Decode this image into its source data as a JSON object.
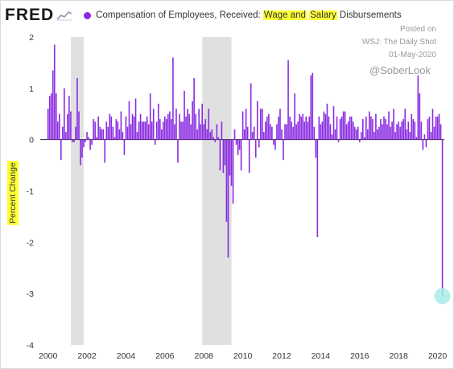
{
  "brand": {
    "logo_text": "FRED",
    "logo_icon": "line-chart-icon"
  },
  "header": {
    "title_prefix": "Compensation of Employees, Received: ",
    "title_highlight_1": "Wage and",
    "title_mid": " ",
    "title_highlight_2": "Salary",
    "title_suffix": " Disbursements"
  },
  "annotation": {
    "line1": "Posted on",
    "line2": "WSJ: The Daily Shot",
    "line3": "01-May-2020",
    "handle": "@SoberLook"
  },
  "colors": {
    "series": "#8a2be2",
    "recession": "#e0e0e0",
    "highlight": "#ffff33",
    "circle": "#a8ece8"
  },
  "chart_data": {
    "type": "bar",
    "title": "Compensation of Employees, Received: Wage and Salary Disbursements",
    "ylabel": "Percent Change",
    "xlabel": "",
    "ylim": [
      -4,
      2
    ],
    "xlim": [
      1999.6,
      2020.35
    ],
    "yticks": [
      "2",
      "1",
      "0",
      "-1",
      "-2",
      "-3",
      "-4"
    ],
    "xticks": [
      "2000",
      "2002",
      "2004",
      "2006",
      "2008",
      "2010",
      "2012",
      "2014",
      "2016",
      "2018",
      "2020"
    ],
    "grid": false,
    "recessions": [
      [
        2001.17,
        2001.83
      ],
      [
        2007.92,
        2009.42
      ]
    ],
    "series": [
      {
        "name": "Compensation of Employees, Received: Wage and Salary Disbursements",
        "x_start": "2000-01",
        "frequency": "monthly",
        "values": [
          0.6,
          0.85,
          0.9,
          1.35,
          1.85,
          0.9,
          0.35,
          0.5,
          -0.4,
          0.25,
          1.0,
          0.15,
          0.5,
          0.85,
          0.55,
          -0.05,
          -0.05,
          0.25,
          1.2,
          0.55,
          -0.5,
          -0.35,
          -0.15,
          -0.05,
          0.15,
          0.05,
          -0.2,
          -0.1,
          0.4,
          0.35,
          0.05,
          0.45,
          0.25,
          0.2,
          0.2,
          -0.45,
          0.35,
          0.25,
          0.5,
          0.45,
          0.25,
          0.05,
          0.4,
          0.35,
          0.2,
          0.55,
          0.15,
          -0.3,
          0.45,
          0.25,
          0.75,
          0.3,
          0.5,
          0.45,
          0.8,
          0.15,
          0.35,
          0.5,
          0.35,
          0.35,
          0.35,
          0.45,
          0.3,
          0.9,
          0.35,
          0.6,
          -0.1,
          0.35,
          0.7,
          0.4,
          0.2,
          0.35,
          0.45,
          0.4,
          0.5,
          0.55,
          0.4,
          1.6,
          0.3,
          0.6,
          -0.45,
          0.5,
          0.35,
          0.35,
          0.95,
          0.45,
          0.6,
          0.5,
          0.3,
          0.75,
          1.2,
          0.5,
          0.2,
          0.6,
          0.3,
          0.7,
          0.3,
          0.4,
          0.2,
          0.6,
          0.15,
          0.2,
          0.05,
          -0.05,
          0.3,
          0.05,
          -0.6,
          0.35,
          -0.65,
          -0.5,
          -1.6,
          -2.3,
          -0.7,
          -0.9,
          -1.25,
          0.2,
          -0.1,
          -0.3,
          -0.2,
          -0.6,
          0.55,
          0.2,
          0.6,
          0.25,
          -0.65,
          1.1,
          0.15,
          0.25,
          -0.35,
          0.75,
          -0.15,
          0.6,
          0.6,
          0.15,
          0.35,
          0.45,
          0.5,
          0.3,
          0.25,
          -0.1,
          -0.2,
          0.3,
          0.45,
          0.6,
          0.2,
          -0.4,
          0.3,
          0.3,
          1.55,
          0.45,
          0.35,
          0.25,
          0.9,
          0.3,
          0.35,
          0.5,
          0.45,
          0.5,
          0.35,
          0.45,
          0.35,
          0.45,
          1.25,
          1.3,
          0.25,
          -0.35,
          -1.9,
          0.45,
          0.3,
          0.35,
          0.55,
          0.5,
          0.7,
          0.45,
          0.3,
          0.1,
          0.65,
          0.2,
          0.45,
          -0.05,
          0.4,
          0.45,
          0.55,
          0.55,
          0.3,
          0.35,
          0.45,
          0.45,
          0.35,
          0.25,
          0.2,
          0.25,
          -0.05,
          0.15,
          0.4,
          0.05,
          0.45,
          0.2,
          0.55,
          0.45,
          0.4,
          0.15,
          0.5,
          0.2,
          0.25,
          0.4,
          0.3,
          0.45,
          0.4,
          0.3,
          0.55,
          0.25,
          0.35,
          0.6,
          0.15,
          0.3,
          0.35,
          0.25,
          0.35,
          0.4,
          0.6,
          0.2,
          0.35,
          0.15,
          0.5,
          0.4,
          0.35,
          0.05,
          1.25,
          0.9,
          0.35,
          -0.2,
          0.1,
          -0.15,
          0.4,
          0.45,
          0.15,
          0.6,
          0.25,
          0.45,
          0.45,
          0.5,
          0.3,
          -3.05
        ]
      }
    ],
    "highlight": {
      "date": "2020-04",
      "value": -3.05
    }
  }
}
